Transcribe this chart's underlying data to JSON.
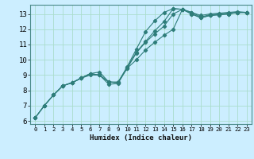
{
  "title": "",
  "xlabel": "Humidex (Indice chaleur)",
  "bg_color": "#cceeff",
  "grid_color": "#aaddcc",
  "line_color": "#2e7d7a",
  "xlim": [
    -0.5,
    23.5
  ],
  "ylim": [
    5.8,
    13.6
  ],
  "yticks": [
    6,
    7,
    8,
    9,
    10,
    11,
    12,
    13
  ],
  "xticks": [
    0,
    1,
    2,
    3,
    4,
    5,
    6,
    7,
    8,
    9,
    10,
    11,
    12,
    13,
    14,
    15,
    16,
    17,
    18,
    19,
    20,
    21,
    22,
    23
  ],
  "series": [
    {
      "x": [
        0,
        1,
        2,
        3,
        4,
        5,
        6,
        7,
        8,
        9,
        10,
        11,
        12,
        13,
        14,
        15,
        16,
        17,
        18,
        19,
        20,
        21,
        22,
        23
      ],
      "y": [
        6.2,
        7.0,
        7.7,
        8.3,
        8.5,
        8.8,
        9.1,
        9.2,
        8.55,
        8.5,
        9.55,
        10.7,
        11.85,
        12.55,
        13.1,
        13.35,
        13.3,
        13.1,
        12.9,
        13.0,
        13.05,
        13.1,
        13.15,
        13.1
      ]
    },
    {
      "x": [
        0,
        1,
        2,
        3,
        4,
        5,
        6,
        7,
        8,
        9,
        10,
        11,
        12,
        13,
        14,
        15,
        16,
        17,
        18,
        19,
        20,
        21,
        22,
        23
      ],
      "y": [
        6.2,
        7.0,
        7.7,
        8.3,
        8.5,
        8.8,
        9.0,
        9.0,
        8.55,
        8.5,
        9.5,
        10.5,
        11.2,
        11.9,
        12.5,
        13.35,
        13.3,
        13.1,
        12.8,
        12.95,
        13.0,
        13.05,
        13.1,
        13.1
      ]
    },
    {
      "x": [
        0,
        1,
        2,
        3,
        4,
        5,
        6,
        7,
        8,
        9,
        10,
        11,
        12,
        13,
        14,
        15,
        16,
        17,
        18,
        19,
        20,
        21,
        22,
        23
      ],
      "y": [
        6.2,
        7.0,
        7.7,
        8.3,
        8.5,
        8.8,
        9.1,
        9.0,
        8.55,
        8.55,
        9.45,
        10.45,
        11.15,
        11.7,
        12.2,
        13.0,
        13.3,
        13.0,
        12.75,
        12.9,
        12.95,
        13.0,
        13.1,
        13.1
      ]
    },
    {
      "x": [
        3,
        4,
        5,
        6,
        7,
        8,
        9,
        10,
        11,
        12,
        13,
        14,
        15,
        16,
        17,
        18,
        19,
        20,
        21,
        22,
        23
      ],
      "y": [
        8.3,
        8.5,
        8.8,
        9.1,
        9.0,
        8.4,
        8.45,
        9.45,
        10.0,
        10.65,
        11.15,
        11.6,
        12.0,
        13.3,
        13.0,
        12.75,
        12.9,
        12.95,
        13.0,
        13.1,
        13.1
      ]
    }
  ]
}
